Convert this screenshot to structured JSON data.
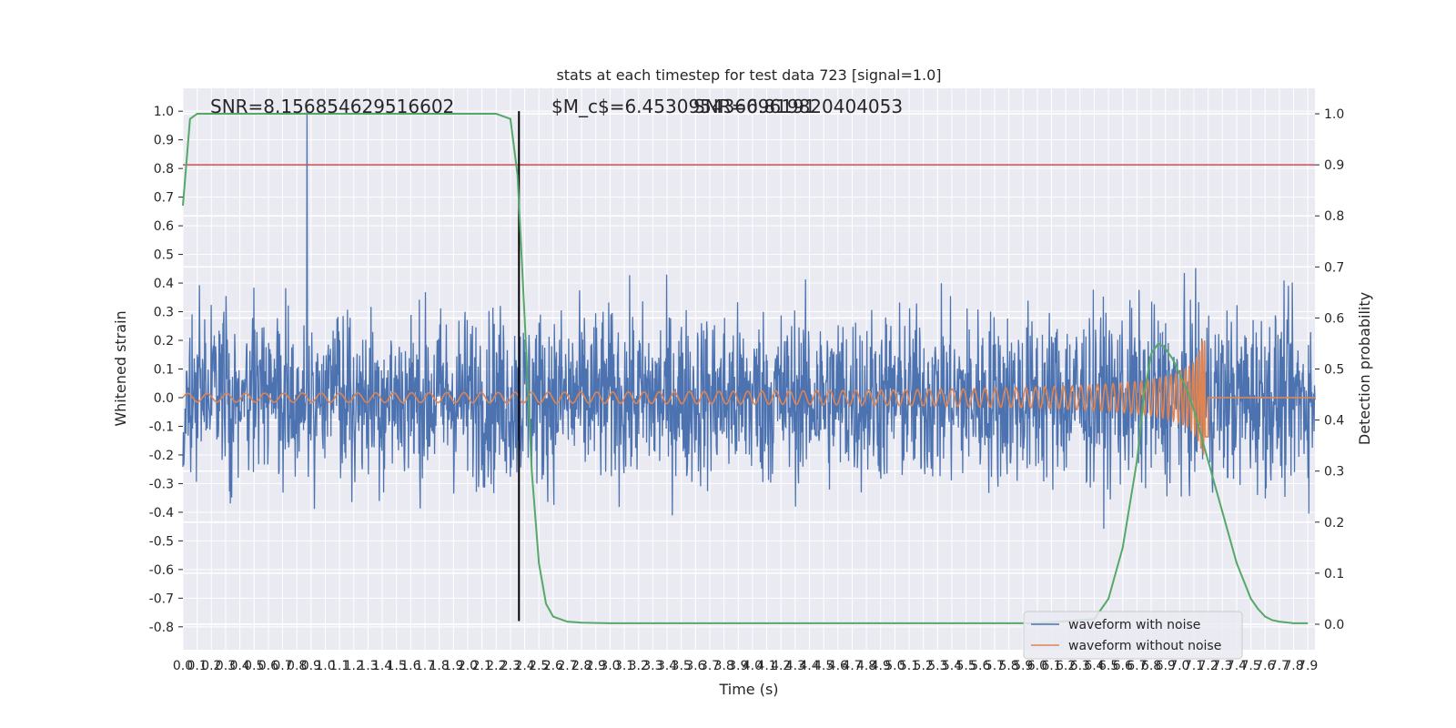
{
  "chart_data": {
    "type": "line",
    "title": "stats at each timestep for test data 723 [signal=1.0]",
    "xlabel": "Time (s)",
    "ylabel_left": "Whitened strain",
    "ylabel_right": "Detection probability",
    "xlim": [
      0.0,
      7.95
    ],
    "ylim_left": [
      -0.88,
      1.08
    ],
    "ylim_right": [
      -0.05,
      1.05
    ],
    "x_ticks": [
      "0.0",
      "0.1",
      "0.2",
      "0.3",
      "0.4",
      "0.5",
      "0.6",
      "0.7",
      "0.8",
      "0.9",
      "1.0",
      "1.1",
      "1.2",
      "1.3",
      "1.4",
      "1.5",
      "1.6",
      "1.7",
      "1.8",
      "1.9",
      "2.0",
      "2.1",
      "2.2",
      "2.3",
      "2.4",
      "2.5",
      "2.6",
      "2.7",
      "2.8",
      "2.9",
      "3.0",
      "3.1",
      "3.2",
      "3.3",
      "3.4",
      "3.5",
      "3.6",
      "3.7",
      "3.8",
      "3.9",
      "4.0",
      "4.1",
      "4.2",
      "4.3",
      "4.4",
      "4.5",
      "4.6",
      "4.7",
      "4.8",
      "4.9",
      "5.0",
      "5.1",
      "5.2",
      "5.3",
      "5.4",
      "5.5",
      "5.6",
      "5.7",
      "5.8",
      "5.9",
      "6.0",
      "6.1",
      "6.2",
      "6.3",
      "6.4",
      "6.5",
      "6.6",
      "6.7",
      "6.8",
      "6.9",
      "7.0",
      "7.1",
      "7.2",
      "7.3",
      "7.4",
      "7.5",
      "7.6",
      "7.7",
      "7.8",
      "7.9"
    ],
    "y_ticks_left": [
      "-0.8",
      "-0.7",
      "-0.6",
      "-0.5",
      "-0.4",
      "-0.3",
      "-0.2",
      "-0.1",
      "0.0",
      "0.1",
      "0.2",
      "0.3",
      "0.4",
      "0.5",
      "0.6",
      "0.7",
      "0.8",
      "0.9",
      "1.0"
    ],
    "y_ticks_right": [
      "0.0",
      "0.1",
      "0.2",
      "0.3",
      "0.4",
      "0.5",
      "0.6",
      "0.7",
      "0.8",
      "0.9",
      "1.0"
    ],
    "annotations": [
      "SNR=8.156854629516602",
      "$M_c$=6.453095436096191",
      "SNR=6.819820404053"
    ],
    "threshold_right": 0.9,
    "merger_time": 2.36,
    "noise_amplitude": 0.28,
    "noise_peak_time": 0.87,
    "noise_peak_value": 1.0,
    "signal_end_time": 7.2,
    "signal_start_amplitude": 0.015,
    "signal_peak_amplitude": 0.2,
    "detection_probability": {
      "x": [
        0.0,
        0.05,
        0.1,
        0.2,
        0.4,
        0.8,
        1.2,
        1.6,
        2.0,
        2.2,
        2.3,
        2.35,
        2.4,
        2.45,
        2.5,
        2.55,
        2.6,
        2.7,
        2.8,
        3.0,
        4.0,
        5.0,
        6.0,
        6.4,
        6.5,
        6.6,
        6.7,
        6.75,
        6.8,
        6.85,
        6.9,
        6.95,
        7.0,
        7.05,
        7.1,
        7.15,
        7.2,
        7.3,
        7.4,
        7.5,
        7.55,
        7.6,
        7.65,
        7.7,
        7.8,
        7.9
      ],
      "y": [
        0.82,
        0.99,
        1.0,
        1.0,
        1.0,
        1.0,
        1.0,
        1.0,
        1.0,
        1.0,
        0.99,
        0.88,
        0.6,
        0.3,
        0.12,
        0.04,
        0.015,
        0.005,
        0.003,
        0.002,
        0.002,
        0.002,
        0.002,
        0.01,
        0.05,
        0.15,
        0.32,
        0.45,
        0.53,
        0.55,
        0.54,
        0.52,
        0.49,
        0.46,
        0.42,
        0.37,
        0.32,
        0.22,
        0.12,
        0.05,
        0.03,
        0.015,
        0.008,
        0.005,
        0.002,
        0.002
      ]
    },
    "legend": {
      "placement": "lower-right",
      "entries": [
        "waveform with noise",
        "waveform without noise"
      ]
    },
    "grid": true,
    "colors": {
      "noise": "#4c72b0",
      "signal": "#dd8452",
      "probability": "#55a868",
      "threshold": "#c44e52",
      "merger": "#000000",
      "background": "#eaeaf2",
      "grid": "#ffffff"
    }
  }
}
